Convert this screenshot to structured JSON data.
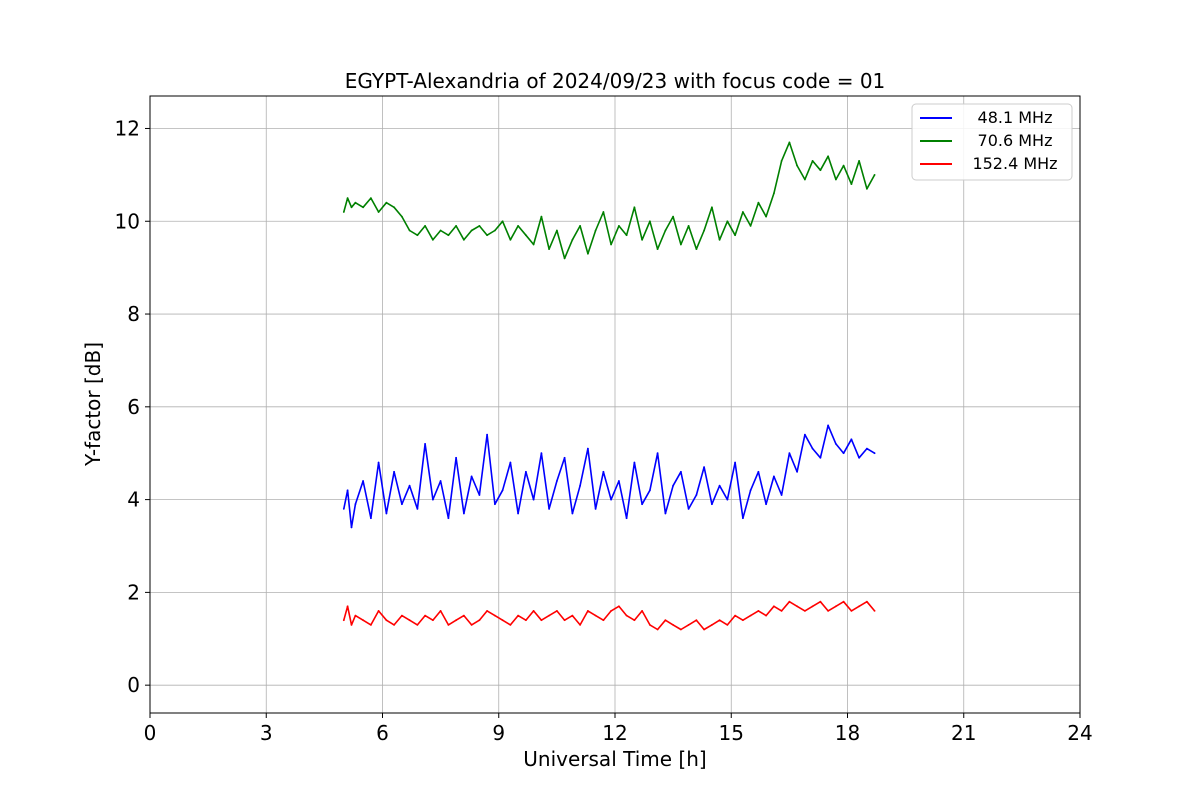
{
  "chart_data": {
    "type": "line",
    "title": "EGYPT-Alexandria of 2024/09/23 with focus code = 01",
    "xlabel": "Universal Time [h]",
    "ylabel": "Y-factor [dB]",
    "xlim": [
      0,
      24
    ],
    "ylim": [
      -0.6,
      12.7
    ],
    "xticks": [
      0,
      3,
      6,
      9,
      12,
      15,
      18,
      21,
      24
    ],
    "yticks": [
      0,
      2,
      4,
      6,
      8,
      10,
      12
    ],
    "grid": true,
    "legend_position": "top-right",
    "series": [
      {
        "name": "48.1 MHz",
        "color": "#0000ff",
        "x": [
          5.0,
          5.1,
          5.2,
          5.3,
          5.5,
          5.7,
          5.9,
          6.1,
          6.3,
          6.5,
          6.7,
          6.9,
          7.1,
          7.3,
          7.5,
          7.7,
          7.9,
          8.1,
          8.3,
          8.5,
          8.7,
          8.9,
          9.1,
          9.3,
          9.5,
          9.7,
          9.9,
          10.1,
          10.3,
          10.5,
          10.7,
          10.9,
          11.1,
          11.3,
          11.5,
          11.7,
          11.9,
          12.1,
          12.3,
          12.5,
          12.7,
          12.9,
          13.1,
          13.3,
          13.5,
          13.7,
          13.9,
          14.1,
          14.3,
          14.5,
          14.7,
          14.9,
          15.1,
          15.3,
          15.5,
          15.7,
          15.9,
          16.1,
          16.3,
          16.5,
          16.7,
          16.9,
          17.1,
          17.3,
          17.5,
          17.7,
          17.9,
          18.1,
          18.3,
          18.5,
          18.7
        ],
        "y": [
          3.8,
          4.2,
          3.4,
          3.9,
          4.4,
          3.6,
          4.8,
          3.7,
          4.6,
          3.9,
          4.3,
          3.8,
          5.2,
          4.0,
          4.4,
          3.6,
          4.9,
          3.7,
          4.5,
          4.1,
          5.4,
          3.9,
          4.2,
          4.8,
          3.7,
          4.6,
          4.0,
          5.0,
          3.8,
          4.4,
          4.9,
          3.7,
          4.3,
          5.1,
          3.8,
          4.6,
          4.0,
          4.4,
          3.6,
          4.8,
          3.9,
          4.2,
          5.0,
          3.7,
          4.3,
          4.6,
          3.8,
          4.1,
          4.7,
          3.9,
          4.3,
          4.0,
          4.8,
          3.6,
          4.2,
          4.6,
          3.9,
          4.5,
          4.1,
          5.0,
          4.6,
          5.4,
          5.1,
          4.9,
          5.6,
          5.2,
          5.0,
          5.3,
          4.9,
          5.1,
          5.0
        ]
      },
      {
        "name": "70.6 MHz",
        "color": "#008000",
        "x": [
          5.0,
          5.1,
          5.2,
          5.3,
          5.5,
          5.7,
          5.9,
          6.1,
          6.3,
          6.5,
          6.7,
          6.9,
          7.1,
          7.3,
          7.5,
          7.7,
          7.9,
          8.1,
          8.3,
          8.5,
          8.7,
          8.9,
          9.1,
          9.3,
          9.5,
          9.7,
          9.9,
          10.1,
          10.3,
          10.5,
          10.7,
          10.9,
          11.1,
          11.3,
          11.5,
          11.7,
          11.9,
          12.1,
          12.3,
          12.5,
          12.7,
          12.9,
          13.1,
          13.3,
          13.5,
          13.7,
          13.9,
          14.1,
          14.3,
          14.5,
          14.7,
          14.9,
          15.1,
          15.3,
          15.5,
          15.7,
          15.9,
          16.1,
          16.3,
          16.5,
          16.7,
          16.9,
          17.1,
          17.3,
          17.5,
          17.7,
          17.9,
          18.1,
          18.3,
          18.5,
          18.7
        ],
        "y": [
          10.2,
          10.5,
          10.3,
          10.4,
          10.3,
          10.5,
          10.2,
          10.4,
          10.3,
          10.1,
          9.8,
          9.7,
          9.9,
          9.6,
          9.8,
          9.7,
          9.9,
          9.6,
          9.8,
          9.9,
          9.7,
          9.8,
          10.0,
          9.6,
          9.9,
          9.7,
          9.5,
          10.1,
          9.4,
          9.8,
          9.2,
          9.6,
          9.9,
          9.3,
          9.8,
          10.2,
          9.5,
          9.9,
          9.7,
          10.3,
          9.6,
          10.0,
          9.4,
          9.8,
          10.1,
          9.5,
          9.9,
          9.4,
          9.8,
          10.3,
          9.6,
          10.0,
          9.7,
          10.2,
          9.9,
          10.4,
          10.1,
          10.6,
          11.3,
          11.7,
          11.2,
          10.9,
          11.3,
          11.1,
          11.4,
          10.9,
          11.2,
          10.8,
          11.3,
          10.7,
          11.0
        ]
      },
      {
        "name": "152.4 MHz",
        "color": "#ff0000",
        "x": [
          5.0,
          5.1,
          5.2,
          5.3,
          5.5,
          5.7,
          5.9,
          6.1,
          6.3,
          6.5,
          6.7,
          6.9,
          7.1,
          7.3,
          7.5,
          7.7,
          7.9,
          8.1,
          8.3,
          8.5,
          8.7,
          8.9,
          9.1,
          9.3,
          9.5,
          9.7,
          9.9,
          10.1,
          10.3,
          10.5,
          10.7,
          10.9,
          11.1,
          11.3,
          11.5,
          11.7,
          11.9,
          12.1,
          12.3,
          12.5,
          12.7,
          12.9,
          13.1,
          13.3,
          13.5,
          13.7,
          13.9,
          14.1,
          14.3,
          14.5,
          14.7,
          14.9,
          15.1,
          15.3,
          15.5,
          15.7,
          15.9,
          16.1,
          16.3,
          16.5,
          16.7,
          16.9,
          17.1,
          17.3,
          17.5,
          17.7,
          17.9,
          18.1,
          18.3,
          18.5,
          18.7
        ],
        "y": [
          1.4,
          1.7,
          1.3,
          1.5,
          1.4,
          1.3,
          1.6,
          1.4,
          1.3,
          1.5,
          1.4,
          1.3,
          1.5,
          1.4,
          1.6,
          1.3,
          1.4,
          1.5,
          1.3,
          1.4,
          1.6,
          1.5,
          1.4,
          1.3,
          1.5,
          1.4,
          1.6,
          1.4,
          1.5,
          1.6,
          1.4,
          1.5,
          1.3,
          1.6,
          1.5,
          1.4,
          1.6,
          1.7,
          1.5,
          1.4,
          1.6,
          1.3,
          1.2,
          1.4,
          1.3,
          1.2,
          1.3,
          1.4,
          1.2,
          1.3,
          1.4,
          1.3,
          1.5,
          1.4,
          1.5,
          1.6,
          1.5,
          1.7,
          1.6,
          1.8,
          1.7,
          1.6,
          1.7,
          1.8,
          1.6,
          1.7,
          1.8,
          1.6,
          1.7,
          1.8,
          1.6
        ]
      }
    ]
  }
}
